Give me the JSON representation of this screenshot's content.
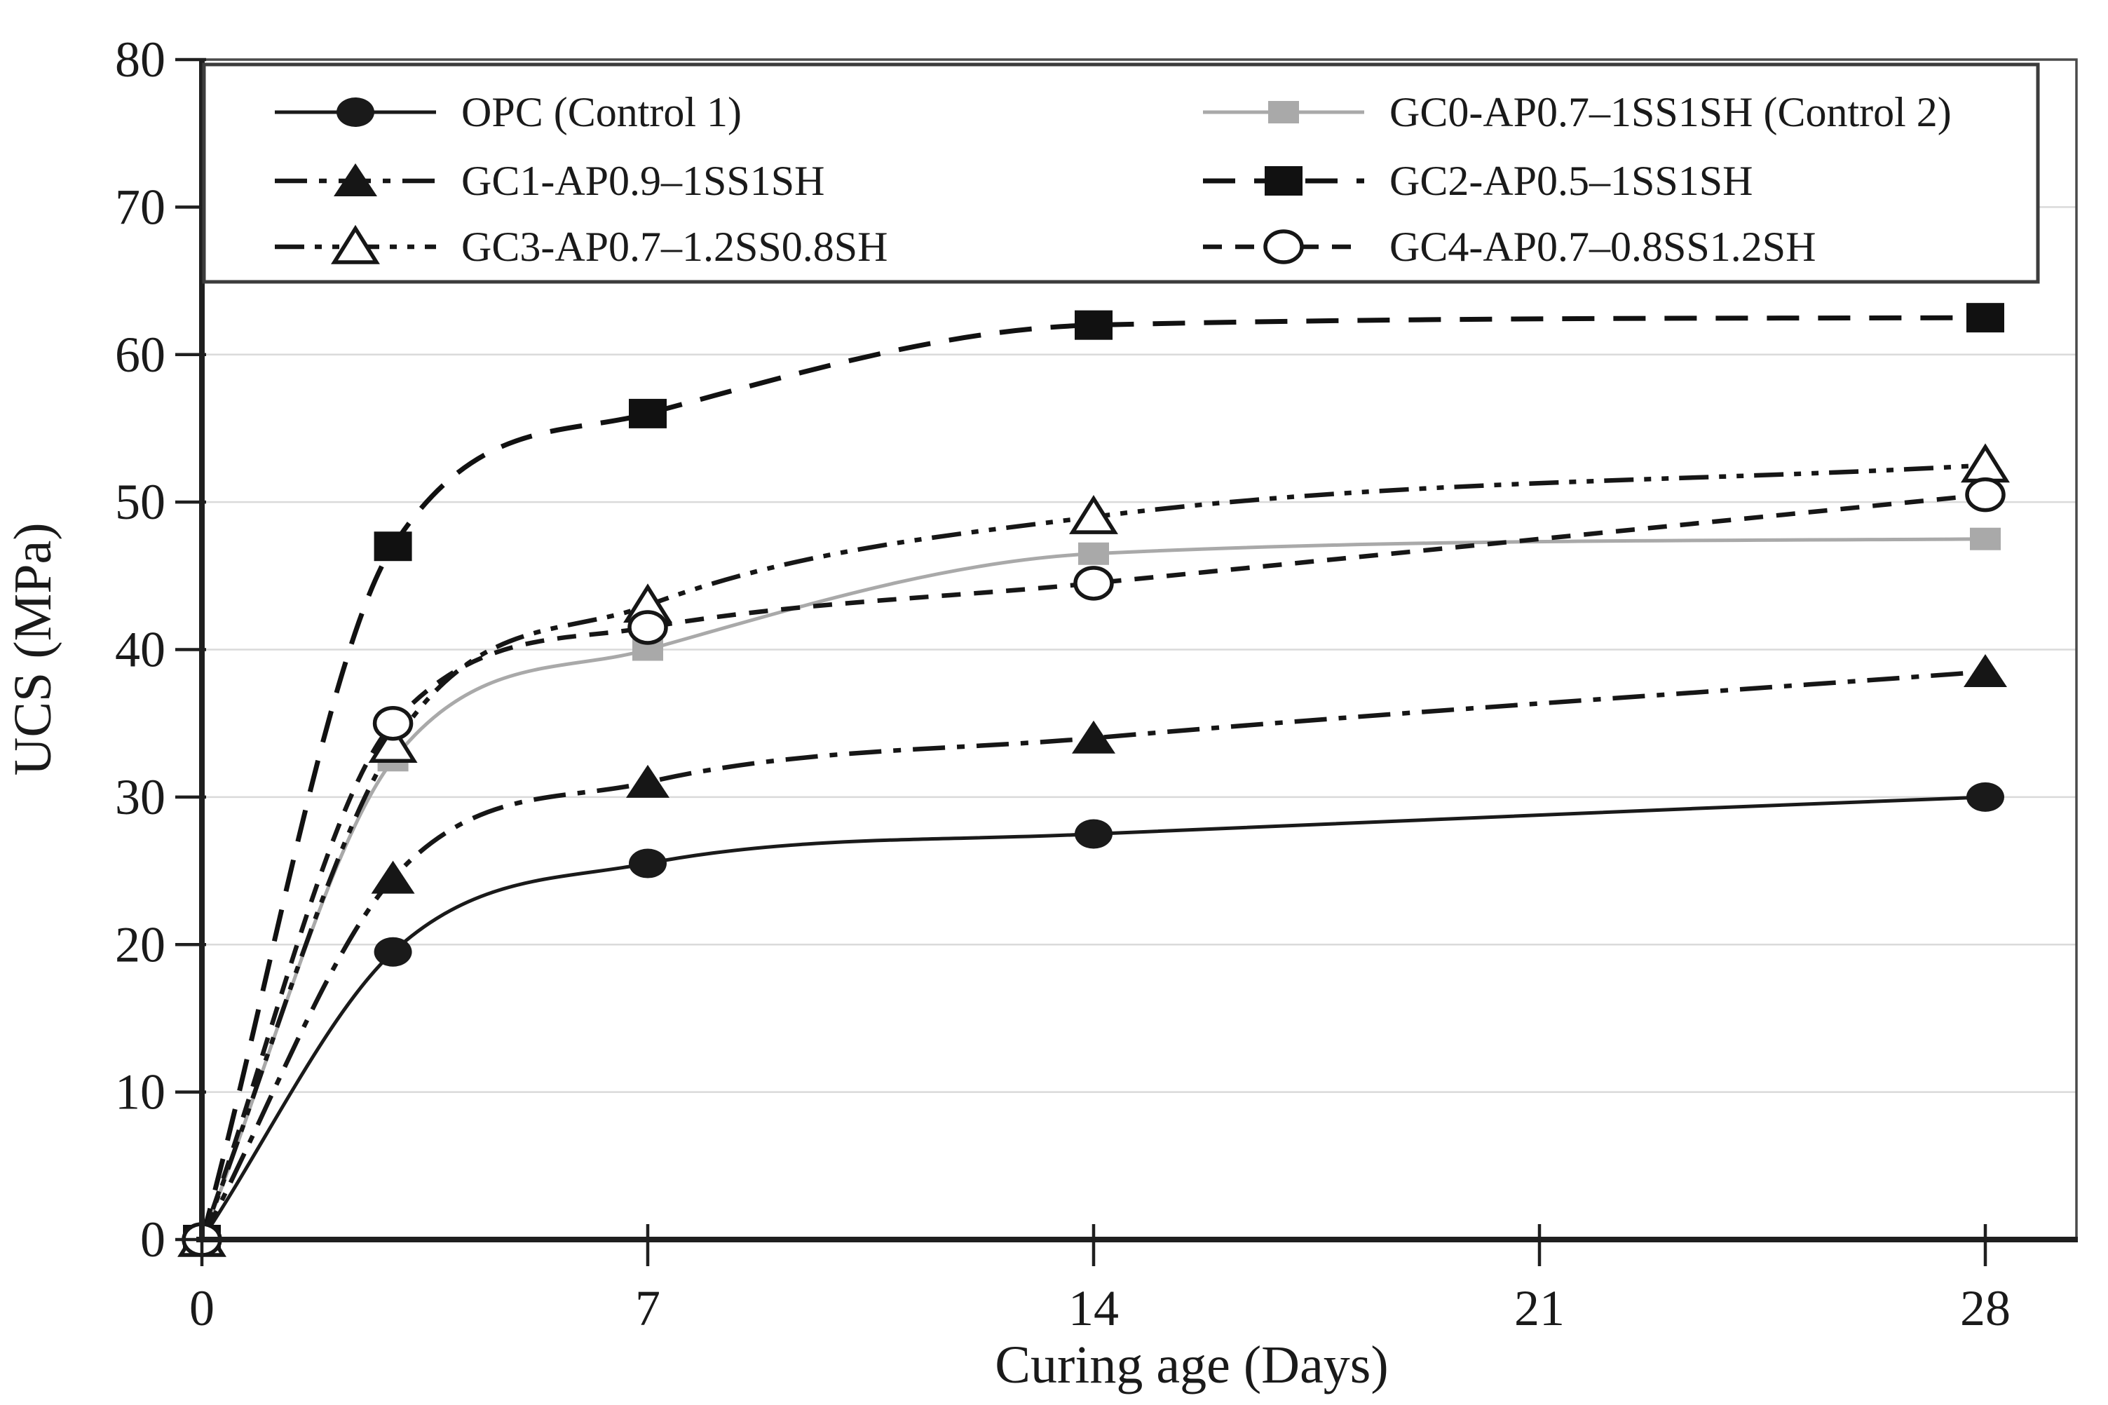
{
  "chart_data": {
    "type": "line",
    "title": "",
    "xlabel": "Curing age (Days)",
    "ylabel": "UCS (MPa)",
    "x": [
      0,
      3,
      7,
      14,
      28
    ],
    "xticks": [
      0,
      7,
      14,
      21,
      28
    ],
    "yticks": [
      0,
      10,
      20,
      30,
      40,
      50,
      60,
      70,
      80
    ],
    "ylim": [
      0,
      80
    ],
    "xlim": [
      0,
      29.4
    ],
    "grid": "horizontal",
    "legend_position": "top-inside-box",
    "series": [
      {
        "name": "OPC (Control 1)",
        "values": [
          0,
          19.5,
          25.5,
          27.5,
          30.0
        ],
        "marker": "filled-circle",
        "line": "solid",
        "color": "#1a1a1a"
      },
      {
        "name": "GC0-AP0.7–1SS1SH (Control 2)",
        "values": [
          0,
          32.5,
          40.0,
          46.5,
          47.5
        ],
        "marker": "gray-square",
        "line": "solid",
        "color": "#a9a9a9"
      },
      {
        "name": "GC1-AP0.9–1SS1SH",
        "values": [
          0,
          24.5,
          31.0,
          34.0,
          38.5
        ],
        "marker": "filled-triangle",
        "line": "dash-dot",
        "color": "#161616"
      },
      {
        "name": "GC2-AP0.5–1SS1SH",
        "values": [
          0,
          47.0,
          56.0,
          62.0,
          62.5
        ],
        "marker": "filled-square",
        "line": "long-dash",
        "color": "#111111"
      },
      {
        "name": "GC3-AP0.7–1.2SS0.8SH",
        "values": [
          0,
          33.5,
          43.0,
          49.0,
          52.5
        ],
        "marker": "open-triangle",
        "line": "dash-dot-dot",
        "color": "#161616"
      },
      {
        "name": "GC4-AP0.7–0.8SS1.2SH",
        "values": [
          0,
          35.0,
          41.5,
          44.5,
          50.5
        ],
        "marker": "open-circle",
        "line": "dash",
        "color": "#161616"
      }
    ],
    "legend_rows": [
      [
        0,
        1
      ],
      [
        2,
        3
      ],
      [
        4,
        5
      ]
    ],
    "colors": {
      "axis": "#1f1f1f",
      "border": "#4a4a4a",
      "gridline": "#dadada",
      "text": "#1a1a1a",
      "background": "#ffffff",
      "gray_series": "#a9a9a9"
    }
  }
}
